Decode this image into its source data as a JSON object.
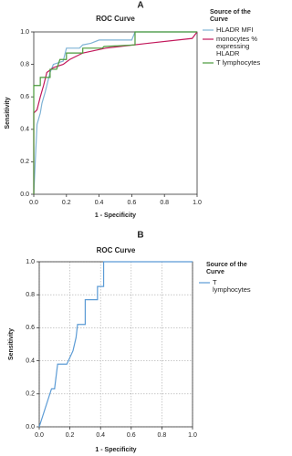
{
  "chart_data": [
    {
      "type": "line",
      "panel_label": "A",
      "title": "ROC Curve",
      "x_label": "1 - Specificity",
      "y_label": "Sensitivity",
      "legend_title": "Source of the Curve",
      "grid": false,
      "xlim": [
        0,
        1
      ],
      "ylim": [
        0,
        1
      ],
      "xticks": [
        {
          "value": 0,
          "label": "0.0"
        },
        {
          "value": 0.2,
          "label": "0.2"
        },
        {
          "value": 0.4,
          "label": "0.4"
        },
        {
          "value": 0.6,
          "label": "0.6"
        },
        {
          "value": 0.8,
          "label": "0.8"
        },
        {
          "value": 1,
          "label": "1.0"
        }
      ],
      "yticks": [
        {
          "value": 0,
          "label": "0.0"
        },
        {
          "value": 0.2,
          "label": "0.2"
        },
        {
          "value": 0.4,
          "label": "0.4"
        },
        {
          "value": 0.6,
          "label": "0.6"
        },
        {
          "value": 0.8,
          "label": "0.8"
        },
        {
          "value": 1,
          "label": "1.0"
        }
      ],
      "series": [
        {
          "name": "HLADR MFI",
          "color": "#7fb3d5",
          "x": [
            0,
            0.01,
            0.02,
            0.04,
            0.05,
            0.07,
            0.1,
            0.12,
            0.18,
            0.2,
            0.28,
            0.3,
            0.35,
            0.4,
            0.6,
            0.62,
            1
          ],
          "values": [
            0,
            0.22,
            0.43,
            0.5,
            0.56,
            0.63,
            0.75,
            0.8,
            0.82,
            0.9,
            0.9,
            0.92,
            0.93,
            0.95,
            0.95,
            1,
            1
          ]
        },
        {
          "name": "monocytes % expressing HLADR",
          "color": "#c2185b",
          "x": [
            0,
            0,
            0.02,
            0.04,
            0.06,
            0.08,
            0.12,
            0.18,
            0.22,
            0.3,
            0.44,
            0.7,
            0.97,
            1
          ],
          "values": [
            0,
            0.5,
            0.52,
            0.6,
            0.67,
            0.75,
            0.78,
            0.8,
            0.83,
            0.87,
            0.9,
            0.93,
            0.96,
            1
          ]
        },
        {
          "name": "T lymphocytes",
          "color": "#4a9a3a",
          "x": [
            0,
            0,
            0.04,
            0.04,
            0.1,
            0.1,
            0.14,
            0.16,
            0.2,
            0.2,
            0.3,
            0.3,
            0.42,
            0.43,
            0.62,
            0.62,
            1
          ],
          "values": [
            0,
            0.67,
            0.67,
            0.72,
            0.72,
            0.77,
            0.77,
            0.83,
            0.83,
            0.87,
            0.87,
            0.9,
            0.9,
            0.91,
            0.92,
            1,
            1
          ]
        }
      ]
    },
    {
      "type": "line",
      "panel_label": "B",
      "title": "ROC Curve",
      "x_label": "1 - Specificity",
      "y_label": "Sensitivity",
      "legend_title": "Source of the Curve",
      "grid": true,
      "xlim": [
        0,
        1
      ],
      "ylim": [
        0,
        1
      ],
      "xticks": [
        {
          "value": 0,
          "label": "0.0"
        },
        {
          "value": 0.2,
          "label": "0.2"
        },
        {
          "value": 0.4,
          "label": "0.4"
        },
        {
          "value": 0.6,
          "label": "0.6"
        },
        {
          "value": 0.8,
          "label": "0.8"
        },
        {
          "value": 1,
          "label": "1.0"
        }
      ],
      "yticks": [
        {
          "value": 0,
          "label": "0.0"
        },
        {
          "value": 0.2,
          "label": "0.2"
        },
        {
          "value": 0.4,
          "label": "0.4"
        },
        {
          "value": 0.6,
          "label": "0.6"
        },
        {
          "value": 0.8,
          "label": "0.8"
        },
        {
          "value": 1,
          "label": "1.0"
        }
      ],
      "series": [
        {
          "name": "T lymphocytes",
          "color": "#5b9bd5",
          "x": [
            0,
            0.08,
            0.1,
            0.12,
            0.18,
            0.22,
            0.24,
            0.25,
            0.3,
            0.3,
            0.38,
            0.38,
            0.42,
            0.42,
            1
          ],
          "values": [
            0,
            0.23,
            0.23,
            0.38,
            0.38,
            0.46,
            0.54,
            0.62,
            0.62,
            0.77,
            0.77,
            0.85,
            0.85,
            1,
            1
          ]
        }
      ]
    }
  ]
}
